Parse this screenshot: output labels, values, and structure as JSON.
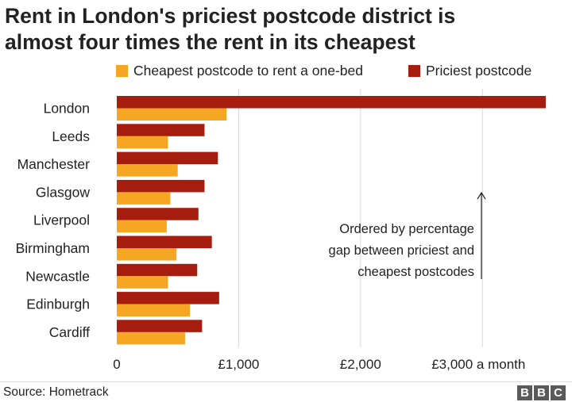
{
  "title_lines": [
    "Rent in London's priciest postcode district is",
    "almost four times the rent in its cheapest"
  ],
  "colors": {
    "cheapest": "#f5a623",
    "priciest": "#a61d0f",
    "grid": "#d9d9d9",
    "text": "#222222",
    "logo": "#5a5a5a"
  },
  "source": "Source: Hometrack",
  "logo_letters": [
    "B",
    "B",
    "C"
  ],
  "chart_data": {
    "type": "bar",
    "orientation": "horizontal",
    "title": "Rent in London's priciest postcode district is almost four times the rent in its cheapest",
    "categories": [
      "London",
      "Leeds",
      "Manchester",
      "Glasgow",
      "Liverpool",
      "Birmingham",
      "Newcastle",
      "Edinburgh",
      "Cardiff"
    ],
    "series": [
      {
        "name": "Priciest postcode",
        "values": [
          3520,
          720,
          830,
          720,
          670,
          780,
          660,
          840,
          700
        ]
      },
      {
        "name": "Cheapest postcode to rent a one-bed",
        "values": [
          900,
          420,
          500,
          440,
          410,
          490,
          420,
          600,
          560
        ]
      }
    ],
    "x_ticks": [
      {
        "value": 0,
        "label": "0"
      },
      {
        "value": 1000,
        "label": "£1,000"
      },
      {
        "value": 2000,
        "label": "£2,000"
      },
      {
        "value": 3000,
        "label": "£3,000 a month"
      }
    ],
    "xlim": [
      0,
      3550
    ],
    "grid": true,
    "legend_position": "top",
    "annotation": {
      "lines": [
        "Ordered by percentage",
        "gap between priciest and",
        "cheapest postcodes"
      ],
      "arrow": "up"
    }
  }
}
